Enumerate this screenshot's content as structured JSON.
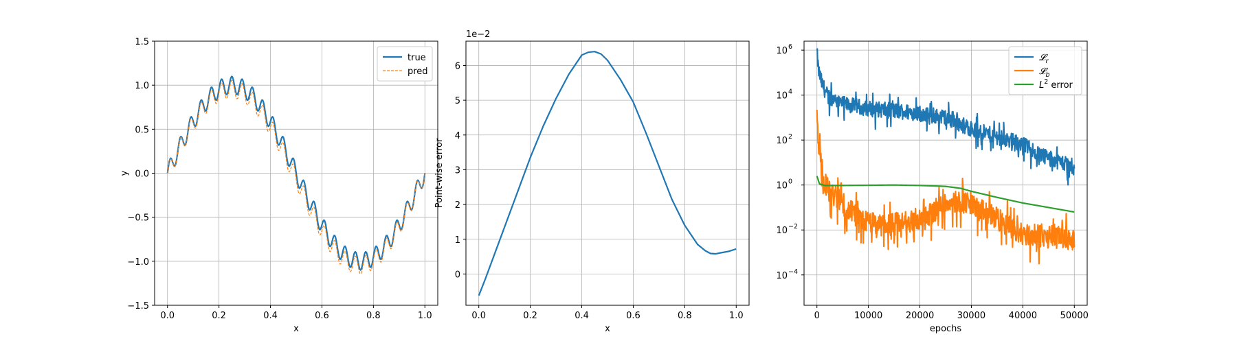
{
  "chart_data": [
    {
      "type": "line",
      "title": "",
      "xlabel": "x",
      "ylabel": "y",
      "xlim": [
        -0.05,
        1.05
      ],
      "ylim": [
        -1.5,
        1.5
      ],
      "xticks": [
        0.0,
        0.2,
        0.4,
        0.6,
        0.8,
        1.0
      ],
      "xtick_labels": [
        "0.0",
        "0.2",
        "0.4",
        "0.6",
        "0.8",
        "1.0"
      ],
      "yticks": [
        -1.5,
        -1.0,
        -0.5,
        0.0,
        0.5,
        1.0,
        1.5
      ],
      "ytick_labels": [
        "−1.5",
        "−1.0",
        "−0.5",
        "0.0",
        "0.5",
        "1.0",
        "1.5"
      ],
      "grid": true,
      "legend": "top-right",
      "series": [
        {
          "name": "true",
          "color": "#1f77b4",
          "style": "solid",
          "function": "sin(2*pi*x) + 0.1*sin(50*pi*x)",
          "x_range": [
            0,
            1
          ],
          "samples": 400
        },
        {
          "name": "pred",
          "color": "#ff7f0e",
          "style": "dashed",
          "function": "sin(2*pi*x) + 0.1*sin(50*pi*x) - 0.064*sin(pi*x)",
          "x_range": [
            0,
            1
          ],
          "samples": 400
        }
      ]
    },
    {
      "type": "line",
      "title": "",
      "xlabel": "x",
      "ylabel": "Point-wise error",
      "offset_label": "1e−2",
      "xlim": [
        -0.05,
        1.05
      ],
      "ylim": [
        -0.9,
        6.7
      ],
      "xticks": [
        0.0,
        0.2,
        0.4,
        0.6,
        0.8,
        1.0
      ],
      "xtick_labels": [
        "0.0",
        "0.2",
        "0.4",
        "0.6",
        "0.8",
        "1.0"
      ],
      "yticks": [
        0,
        1,
        2,
        3,
        4,
        5,
        6
      ],
      "ytick_labels": [
        "0",
        "1",
        "2",
        "3",
        "4",
        "5",
        "6"
      ],
      "grid": true,
      "series": [
        {
          "name": "",
          "color": "#1f77b4",
          "style": "solid",
          "x": [
            0.0,
            0.025,
            0.05,
            0.1,
            0.15,
            0.2,
            0.25,
            0.3,
            0.35,
            0.4,
            0.425,
            0.45,
            0.475,
            0.5,
            0.55,
            0.6,
            0.65,
            0.7,
            0.75,
            0.8,
            0.85,
            0.88,
            0.9,
            0.92,
            0.94,
            0.97,
            1.0
          ],
          "y": [
            -0.62,
            -0.15,
            0.35,
            1.35,
            2.35,
            3.35,
            4.25,
            5.05,
            5.75,
            6.3,
            6.38,
            6.4,
            6.33,
            6.15,
            5.6,
            4.95,
            4.05,
            3.1,
            2.15,
            1.4,
            0.85,
            0.67,
            0.59,
            0.58,
            0.61,
            0.65,
            0.72
          ]
        }
      ]
    },
    {
      "type": "line",
      "title": "",
      "xlabel": "epochs",
      "ylabel": "",
      "yscale": "log",
      "xlim": [
        -2500,
        52500
      ],
      "ylim_log10": [
        -5.35,
        6.4
      ],
      "xticks": [
        0,
        10000,
        20000,
        30000,
        40000,
        50000
      ],
      "xtick_labels": [
        "0",
        "10000",
        "20000",
        "30000",
        "40000",
        "50000"
      ],
      "yticks_log10": [
        -4,
        -2,
        0,
        2,
        4,
        6
      ],
      "ytick_labels": [
        "10",
        "10",
        "10",
        "10",
        "10",
        "10"
      ],
      "ytick_exponents": [
        "−4",
        "−2",
        "0",
        "2",
        "4",
        "6"
      ],
      "grid": true,
      "legend": "top-right",
      "series": [
        {
          "name": "𝓛",
          "name_subscript": "r",
          "color": "#1f77b4",
          "style": "solid",
          "noisy": true,
          "log10_trend": {
            "x": [
              0,
              300,
              1000,
              2000,
              5000,
              10000,
              20000,
              25000,
              30000,
              40000,
              45000,
              50000
            ],
            "y": [
              5.9,
              5.1,
              4.5,
              4.0,
              3.6,
              3.4,
              3.2,
              3.0,
              2.5,
              1.8,
              1.2,
              0.8
            ]
          },
          "noise_log10": 0.35
        },
        {
          "name": "𝓛",
          "name_subscript": "b",
          "color": "#ff7f0e",
          "style": "solid",
          "noisy": true,
          "log10_trend": {
            "x": [
              0,
              500,
              1200,
              2500,
              5000,
              8000,
              12000,
              20000,
              25000,
              28000,
              30000,
              35000,
              40000,
              45000,
              50000
            ],
            "y": [
              2.7,
              1.8,
              0.2,
              -0.3,
              -0.8,
              -1.5,
              -1.8,
              -1.6,
              -0.8,
              -0.7,
              -0.9,
              -1.5,
              -2.2,
              -2.3,
              -2.4
            ]
          },
          "noise_log10": 0.5
        },
        {
          "name": "L",
          "name_superscript": "2",
          "name_suffix": " error",
          "color": "#2ca02c",
          "style": "solid",
          "noisy": false,
          "log10_trend": {
            "x": [
              0,
              500,
              1500,
              5000,
              10000,
              15000,
              20000,
              25000,
              28000,
              30000,
              35000,
              40000,
              45000,
              50000
            ],
            "y": [
              0.4,
              0.05,
              -0.02,
              -0.02,
              -0.01,
              0.0,
              -0.02,
              -0.06,
              -0.15,
              -0.28,
              -0.55,
              -0.8,
              -1.0,
              -1.2
            ]
          }
        }
      ]
    }
  ]
}
